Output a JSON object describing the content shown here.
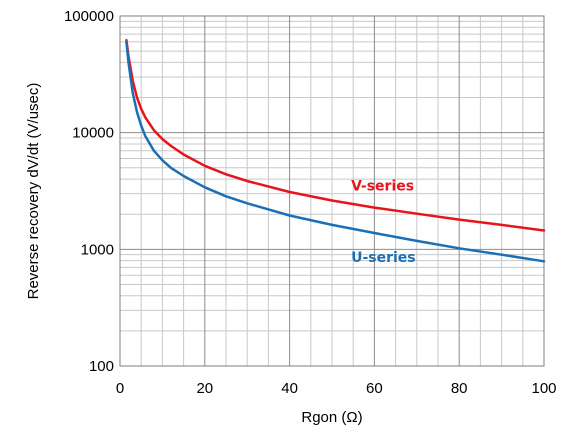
{
  "chart_data": {
    "type": "line",
    "title": "",
    "xlabel": "Rgon (Ω)",
    "ylabel": "Reverse recovery dV/dt (V/usec)",
    "xlim": [
      0,
      100
    ],
    "ylim": [
      100,
      100000
    ],
    "yscale": "log",
    "grid": true,
    "x_ticks": [
      "0",
      "20",
      "40",
      "60",
      "80",
      "100"
    ],
    "y_ticks": [
      "100",
      "1000",
      "10000",
      "100000"
    ],
    "series": [
      {
        "name": "V-series",
        "color": "#e8141c",
        "x": [
          1.5,
          2,
          3,
          4,
          5,
          6,
          8,
          10,
          12,
          15,
          20,
          25,
          30,
          40,
          50,
          60,
          70,
          80,
          90,
          100
        ],
        "y": [
          62000,
          45000,
          28000,
          20000,
          16000,
          13500,
          10500,
          8800,
          7700,
          6500,
          5200,
          4400,
          3850,
          3100,
          2620,
          2280,
          2020,
          1800,
          1620,
          1450
        ]
      },
      {
        "name": "U-series",
        "color": "#1c6fb4",
        "x": [
          1.5,
          2,
          3,
          4,
          5,
          6,
          8,
          10,
          12,
          15,
          20,
          25,
          30,
          40,
          50,
          60,
          70,
          80,
          90,
          100
        ],
        "y": [
          60000,
          40000,
          22000,
          15000,
          11500,
          9300,
          7000,
          5800,
          5000,
          4250,
          3400,
          2850,
          2480,
          1950,
          1620,
          1380,
          1180,
          1020,
          900,
          790
        ]
      }
    ]
  }
}
